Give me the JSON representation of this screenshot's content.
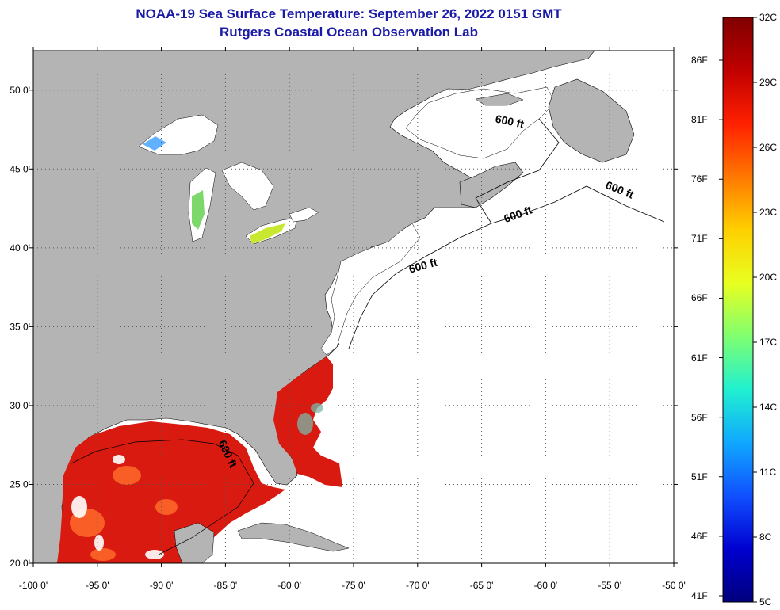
{
  "title": {
    "line1": "NOAA-19 Sea Surface Temperature:  September 26, 2022 0151 GMT",
    "line2": "Rutgers Coastal Ocean Observation Lab"
  },
  "map": {
    "lon_range": [
      -100,
      -50
    ],
    "lat_range": [
      20,
      52.5
    ],
    "lon_ticks": [
      "-100 0'",
      "-95 0'",
      "-90 0'",
      "-85 0'",
      "-80 0'",
      "-75 0'",
      "-70 0'",
      "-65 0'",
      "-60 0'",
      "-55 0'",
      "-50 0'"
    ],
    "lat_ticks": [
      "20 0'",
      "25 0'",
      "30 0'",
      "35 0'",
      "40 0'",
      "45 0'",
      "50 0'"
    ],
    "contour_labels": [
      "600 ft",
      "600 ft",
      "600 ft",
      "600 ft",
      "600 ft"
    ],
    "land_color": "#b4b4b4",
    "water_color": "#ffffff",
    "grid": "dotted"
  },
  "colorbar": {
    "celsius": [
      "32C",
      "29C",
      "26C",
      "23C",
      "20C",
      "17C",
      "14C",
      "11C",
      "8C",
      "5C"
    ],
    "fahrenheit": [
      "86F",
      "81F",
      "76F",
      "71F",
      "66F",
      "61F",
      "56F",
      "51F",
      "46F",
      "41F"
    ],
    "colors": [
      "#800000",
      "#c00000",
      "#ff2000",
      "#ff7800",
      "#ffd000",
      "#e8ff20",
      "#80ff70",
      "#20f0d0",
      "#10a8ff",
      "#1050ff",
      "#0000d0",
      "#00007c"
    ]
  }
}
